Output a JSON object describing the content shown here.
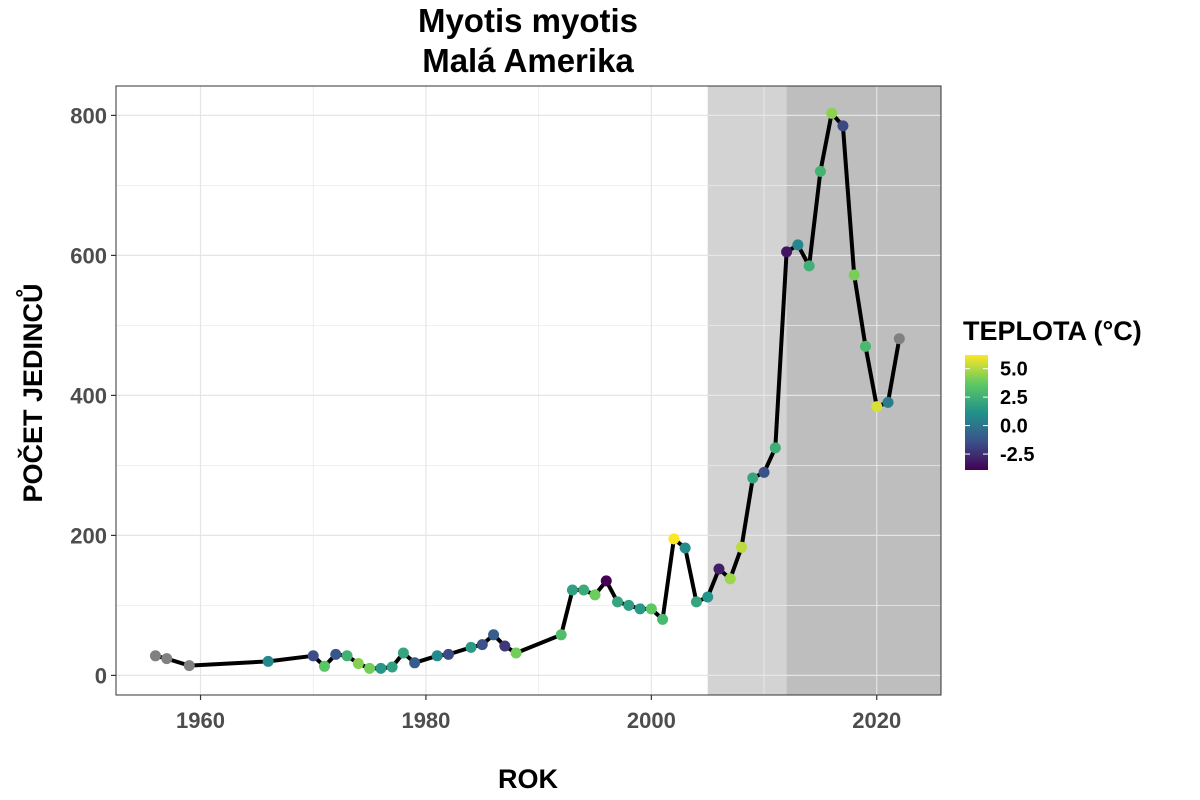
{
  "chart_data": {
    "type": "line",
    "title": "Myotis myotis",
    "subtitle": "Malá Amerika",
    "xlabel": "ROK",
    "ylabel": "POČET JEDINCŮ",
    "xlim": [
      1952.5,
      2025.7
    ],
    "ylim": [
      -28,
      842
    ],
    "x_ticks": [
      1960,
      1980,
      2000,
      2020
    ],
    "y_ticks": [
      0,
      200,
      400,
      600,
      800
    ],
    "grid": true,
    "shaded_periods": [
      {
        "from": 2005,
        "to": 2012,
        "color": "#d3d3d3"
      },
      {
        "from": 2012,
        "to": 2025.7,
        "color": "#bebebe"
      }
    ],
    "line_color": "#000000",
    "missing_color": "#808080",
    "legend": {
      "title": "TEPLOTA (°C)",
      "position": "right",
      "labels": [
        "5.0",
        "2.5",
        "0.0",
        "-2.5"
      ],
      "label_values": [
        5.0,
        2.5,
        0.0,
        -2.5
      ],
      "range": [
        -3.9,
        6.2
      ],
      "palette": [
        "#440154",
        "#3b528b",
        "#21918c",
        "#5ec962",
        "#fde725"
      ]
    },
    "points": [
      {
        "x": 1956,
        "y": 28,
        "temp": null
      },
      {
        "x": 1957,
        "y": 24,
        "temp": null
      },
      {
        "x": 1959,
        "y": 14,
        "temp": null
      },
      {
        "x": 1966,
        "y": 20,
        "temp": 0.8
      },
      {
        "x": 1970,
        "y": 28,
        "temp": -1.5
      },
      {
        "x": 1971,
        "y": 13,
        "temp": 3.5
      },
      {
        "x": 1972,
        "y": 30,
        "temp": -1.2
      },
      {
        "x": 1973,
        "y": 28,
        "temp": 2.6
      },
      {
        "x": 1974,
        "y": 17,
        "temp": 4.3
      },
      {
        "x": 1975,
        "y": 10,
        "temp": 4.0
      },
      {
        "x": 1976,
        "y": 10,
        "temp": 1.4
      },
      {
        "x": 1977,
        "y": 12,
        "temp": 1.8
      },
      {
        "x": 1978,
        "y": 32,
        "temp": 2.0
      },
      {
        "x": 1979,
        "y": 18,
        "temp": -1.0
      },
      {
        "x": 1981,
        "y": 28,
        "temp": 0.9
      },
      {
        "x": 1982,
        "y": 30,
        "temp": -1.6
      },
      {
        "x": 1984,
        "y": 40,
        "temp": 1.6
      },
      {
        "x": 1985,
        "y": 44,
        "temp": -1.4
      },
      {
        "x": 1986,
        "y": 58,
        "temp": -0.9
      },
      {
        "x": 1987,
        "y": 42,
        "temp": -2.2
      },
      {
        "x": 1988,
        "y": 32,
        "temp": 4.0
      },
      {
        "x": 1992,
        "y": 58,
        "temp": 3.2
      },
      {
        "x": 1993,
        "y": 122,
        "temp": 1.8
      },
      {
        "x": 1994,
        "y": 122,
        "temp": 2.3
      },
      {
        "x": 1995,
        "y": 115,
        "temp": 3.9
      },
      {
        "x": 1996,
        "y": 135,
        "temp": -3.9
      },
      {
        "x": 1997,
        "y": 105,
        "temp": 2.0
      },
      {
        "x": 1998,
        "y": 100,
        "temp": 1.7
      },
      {
        "x": 1999,
        "y": 95,
        "temp": 1.5
      },
      {
        "x": 2000,
        "y": 95,
        "temp": 3.6
      },
      {
        "x": 2001,
        "y": 80,
        "temp": 2.9
      },
      {
        "x": 2002,
        "y": 195,
        "temp": 6.2
      },
      {
        "x": 2003,
        "y": 182,
        "temp": 1.0
      },
      {
        "x": 2004,
        "y": 105,
        "temp": 2.0
      },
      {
        "x": 2005,
        "y": 112,
        "temp": 1.3
      },
      {
        "x": 2006,
        "y": 152,
        "temp": -3.0
      },
      {
        "x": 2007,
        "y": 138,
        "temp": 4.7
      },
      {
        "x": 2008,
        "y": 183,
        "temp": 5.2
      },
      {
        "x": 2009,
        "y": 282,
        "temp": 2.0
      },
      {
        "x": 2010,
        "y": 290,
        "temp": -1.4
      },
      {
        "x": 2011,
        "y": 325,
        "temp": 2.4
      },
      {
        "x": 2012,
        "y": 605,
        "temp": -3.3
      },
      {
        "x": 2013,
        "y": 615,
        "temp": 0.7
      },
      {
        "x": 2014,
        "y": 585,
        "temp": 2.5
      },
      {
        "x": 2015,
        "y": 720,
        "temp": 2.7
      },
      {
        "x": 2016,
        "y": 803,
        "temp": 4.4
      },
      {
        "x": 2017,
        "y": 785,
        "temp": -1.7
      },
      {
        "x": 2018,
        "y": 572,
        "temp": 4.1
      },
      {
        "x": 2019,
        "y": 470,
        "temp": 2.9
      },
      {
        "x": 2020,
        "y": 384,
        "temp": 5.6
      },
      {
        "x": 2021,
        "y": 390,
        "temp": 0.3
      },
      {
        "x": 2022,
        "y": 481,
        "temp": null
      }
    ]
  }
}
